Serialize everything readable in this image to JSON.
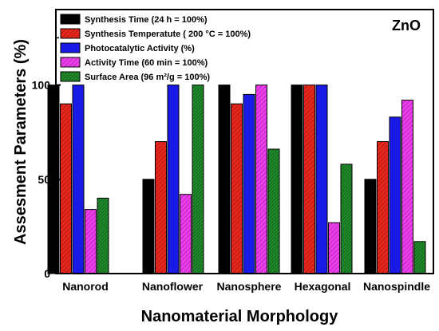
{
  "chart_data": {
    "type": "bar",
    "annotation": "ZnO",
    "xlabel": "Nanomaterial Morphology",
    "ylabel": "Assesment Parameters (%)",
    "ylim": [
      0,
      140
    ],
    "yticks": [
      0,
      50,
      100
    ],
    "categories": [
      "Nanorod",
      "Nanoflower",
      "Nanosphere",
      "Hexagonal",
      "Nanospindle"
    ],
    "series": [
      {
        "name": "Synthesis Time (24 h = 100%)",
        "color": "#000000",
        "pattern": "solid",
        "values": [
          100,
          50,
          100,
          100,
          50
        ]
      },
      {
        "name": "Synthesis Temperatute ( 200 °C = 100%)",
        "color": "#e8261c",
        "pattern": "hatch",
        "values": [
          90,
          70,
          90,
          100,
          70
        ]
      },
      {
        "name": "Photocatalytic Activity (%)",
        "color": "#1a1ae6",
        "pattern": "solid",
        "values": [
          100,
          100,
          95,
          100,
          83
        ]
      },
      {
        "name": "Activity Time (60 min = 100%)",
        "color": "#ee3cee",
        "pattern": "hatch",
        "values": [
          34,
          42,
          100,
          27,
          92
        ]
      },
      {
        "name": "Surface Area (96 m²/g = 100%)",
        "color": "#1f8a2a",
        "pattern": "hatch-dense",
        "values": [
          40,
          100,
          66,
          58,
          17
        ]
      }
    ],
    "legend_position": "top-left",
    "grid": false
  }
}
